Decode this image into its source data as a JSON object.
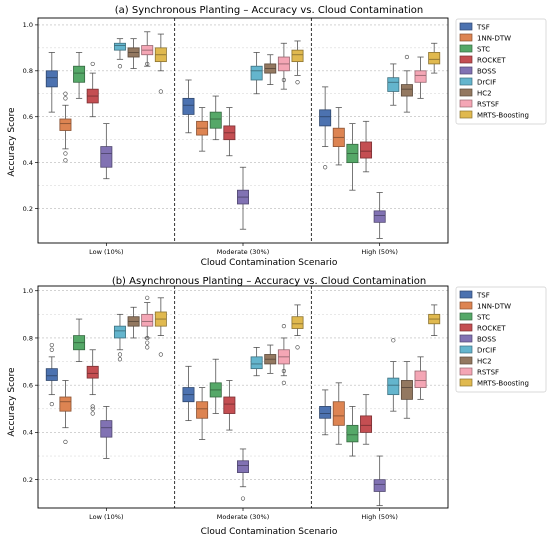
{
  "chart_data": [
    {
      "type": "box",
      "title": "(a) Synchronous Planting – Accuracy vs. Cloud Contamination",
      "xlabel": "Cloud Contamination Scenario",
      "ylabel": "Accuracy Score",
      "ylim": [
        0.05,
        1.03
      ],
      "yticks": [
        "0.2",
        "0.4",
        "0.6",
        "0.8",
        "1.0"
      ],
      "grid": "horizontal-dashed",
      "legend_position": "outside-right",
      "categories": [
        "Low (10%)",
        "Moderate (30%)",
        "High (50%)"
      ],
      "series": [
        {
          "name": "TSF",
          "color": "#4c72b0",
          "boxes": [
            [
              0.62,
              0.73,
              0.77,
              0.8,
              0.88
            ],
            [
              0.53,
              0.61,
              0.65,
              0.68,
              0.76
            ],
            [
              0.47,
              0.56,
              0.6,
              0.63,
              0.73
            ]
          ],
          "outliers": [
            [],
            [],
            [
              0.38
            ]
          ]
        },
        {
          "name": "1NN-DTW",
          "color": "#dd8452",
          "boxes": [
            [
              0.46,
              0.54,
              0.57,
              0.59,
              0.65
            ],
            [
              0.45,
              0.52,
              0.55,
              0.58,
              0.64
            ],
            [
              0.39,
              0.47,
              0.51,
              0.55,
              0.64
            ]
          ],
          "outliers": [
            [
              0.41,
              0.44,
              0.68,
              0.7
            ],
            [],
            []
          ]
        },
        {
          "name": "STC",
          "color": "#55a868",
          "boxes": [
            [
              0.68,
              0.75,
              0.79,
              0.82,
              0.88
            ],
            [
              0.5,
              0.55,
              0.59,
              0.62,
              0.69
            ],
            [
              0.28,
              0.4,
              0.44,
              0.48,
              0.57
            ]
          ],
          "outliers": [
            [],
            [],
            []
          ]
        },
        {
          "name": "ROCKET",
          "color": "#c44e52",
          "boxes": [
            [
              0.6,
              0.66,
              0.69,
              0.72,
              0.79
            ],
            [
              0.43,
              0.5,
              0.53,
              0.56,
              0.64
            ],
            [
              0.36,
              0.42,
              0.45,
              0.49,
              0.58
            ]
          ],
          "outliers": [
            [
              0.83
            ],
            [],
            []
          ]
        },
        {
          "name": "BOSS",
          "color": "#8172b3",
          "boxes": [
            [
              0.33,
              0.38,
              0.44,
              0.47,
              0.57
            ],
            [
              0.11,
              0.22,
              0.25,
              0.28,
              0.38
            ],
            [
              0.07,
              0.14,
              0.17,
              0.19,
              0.27
            ]
          ],
          "outliers": [
            [],
            [],
            []
          ]
        },
        {
          "name": "DrCIF",
          "color": "#64b5cd",
          "boxes": [
            [
              0.85,
              0.89,
              0.91,
              0.92,
              0.94
            ],
            [
              0.7,
              0.76,
              0.8,
              0.82,
              0.88
            ],
            [
              0.65,
              0.71,
              0.75,
              0.77,
              0.83
            ]
          ],
          "outliers": [
            [
              0.82
            ],
            [],
            []
          ]
        },
        {
          "name": "HC2",
          "color": "#937860",
          "boxes": [
            [
              0.81,
              0.86,
              0.88,
              0.9,
              0.94
            ],
            [
              0.74,
              0.79,
              0.81,
              0.83,
              0.87
            ],
            [
              0.62,
              0.69,
              0.72,
              0.74,
              0.8
            ]
          ],
          "outliers": [
            [],
            [],
            [
              0.86
            ]
          ]
        },
        {
          "name": "RSTSF",
          "color": "#f4a6b5",
          "boxes": [
            [
              0.82,
              0.87,
              0.89,
              0.91,
              0.97
            ],
            [
              0.72,
              0.8,
              0.83,
              0.86,
              0.92
            ],
            [
              0.68,
              0.75,
              0.78,
              0.8,
              0.86
            ]
          ],
          "outliers": [
            [
              0.83
            ],
            [
              0.76
            ],
            []
          ]
        },
        {
          "name": "MRTS-Boosting",
          "color": "#e0b94f",
          "boxes": [
            [
              0.8,
              0.84,
              0.87,
              0.9,
              0.96
            ],
            [
              0.78,
              0.84,
              0.87,
              0.89,
              0.93
            ],
            [
              0.79,
              0.83,
              0.85,
              0.88,
              0.92
            ]
          ],
          "outliers": [
            [
              0.71
            ],
            [
              0.75
            ],
            []
          ]
        }
      ]
    },
    {
      "type": "box",
      "title": "(b) Asynchronous Planting – Accuracy vs. Cloud Contamination",
      "xlabel": "Cloud Contamination Scenario",
      "ylabel": "Accuracy Score",
      "ylim": [
        0.08,
        1.02
      ],
      "yticks": [
        "0.2",
        "0.4",
        "0.6",
        "0.8",
        "1.0"
      ],
      "grid": "horizontal-dashed",
      "legend_position": "outside-right",
      "categories": [
        "Low (10%)",
        "Moderate (30%)",
        "High (50%)"
      ],
      "series": [
        {
          "name": "TSF",
          "color": "#4c72b0",
          "boxes": [
            [
              0.56,
              0.62,
              0.64,
              0.67,
              0.72
            ],
            [
              0.45,
              0.53,
              0.56,
              0.59,
              0.68
            ],
            [
              0.39,
              0.46,
              0.48,
              0.51,
              0.58
            ]
          ],
          "outliers": [
            [
              0.52,
              0.75,
              0.77
            ],
            [],
            []
          ]
        },
        {
          "name": "1NN-DTW",
          "color": "#dd8452",
          "boxes": [
            [
              0.42,
              0.49,
              0.53,
              0.55,
              0.62
            ],
            [
              0.37,
              0.46,
              0.5,
              0.53,
              0.59
            ],
            [
              0.35,
              0.43,
              0.47,
              0.53,
              0.61
            ]
          ],
          "outliers": [
            [
              0.36
            ],
            [],
            []
          ]
        },
        {
          "name": "STC",
          "color": "#55a868",
          "boxes": [
            [
              0.7,
              0.75,
              0.78,
              0.81,
              0.88
            ],
            [
              0.48,
              0.55,
              0.58,
              0.61,
              0.71
            ],
            [
              0.3,
              0.36,
              0.39,
              0.43,
              0.51
            ]
          ],
          "outliers": [
            [],
            [],
            []
          ]
        },
        {
          "name": "ROCKET",
          "color": "#c44e52",
          "boxes": [
            [
              0.56,
              0.63,
              0.65,
              0.68,
              0.75
            ],
            [
              0.41,
              0.48,
              0.52,
              0.55,
              0.62
            ],
            [
              0.35,
              0.4,
              0.43,
              0.47,
              0.56
            ]
          ],
          "outliers": [
            [
              0.48,
              0.5,
              0.51
            ],
            [],
            []
          ]
        },
        {
          "name": "BOSS",
          "color": "#8172b3",
          "boxes": [
            [
              0.29,
              0.38,
              0.42,
              0.45,
              0.51
            ],
            [
              0.17,
              0.23,
              0.26,
              0.28,
              0.33
            ],
            [
              0.09,
              0.15,
              0.18,
              0.2,
              0.3
            ]
          ],
          "outliers": [
            [],
            [
              0.12
            ],
            []
          ]
        },
        {
          "name": "DrCIF",
          "color": "#64b5cd",
          "boxes": [
            [
              0.75,
              0.8,
              0.83,
              0.85,
              0.9
            ],
            [
              0.64,
              0.67,
              0.69,
              0.72,
              0.76
            ],
            [
              0.49,
              0.56,
              0.6,
              0.63,
              0.7
            ]
          ],
          "outliers": [
            [
              0.71,
              0.73
            ],
            [],
            [
              0.79
            ]
          ]
        },
        {
          "name": "HC2",
          "color": "#937860",
          "boxes": [
            [
              0.8,
              0.85,
              0.87,
              0.89,
              0.93
            ],
            [
              0.65,
              0.69,
              0.71,
              0.73,
              0.77
            ],
            [
              0.46,
              0.54,
              0.59,
              0.62,
              0.7
            ]
          ],
          "outliers": [
            [],
            [],
            []
          ]
        },
        {
          "name": "RSTSF",
          "color": "#f4a6b5",
          "boxes": [
            [
              0.8,
              0.85,
              0.87,
              0.9,
              0.95
            ],
            [
              0.64,
              0.69,
              0.72,
              0.75,
              0.8
            ],
            [
              0.54,
              0.59,
              0.62,
              0.66,
              0.72
            ]
          ],
          "outliers": [
            [
              0.76,
              0.78,
              0.8,
              0.97
            ],
            [
              0.61,
              0.66,
              0.85
            ],
            []
          ]
        },
        {
          "name": "MRTS-Boosting",
          "color": "#e0b94f",
          "boxes": [
            [
              0.81,
              0.85,
              0.88,
              0.91,
              0.97
            ],
            [
              0.81,
              0.84,
              0.86,
              0.89,
              0.94
            ],
            [
              0.81,
              0.86,
              0.88,
              0.9,
              0.94
            ]
          ],
          "outliers": [
            [
              0.73
            ],
            [
              0.76
            ],
            []
          ]
        }
      ]
    }
  ]
}
